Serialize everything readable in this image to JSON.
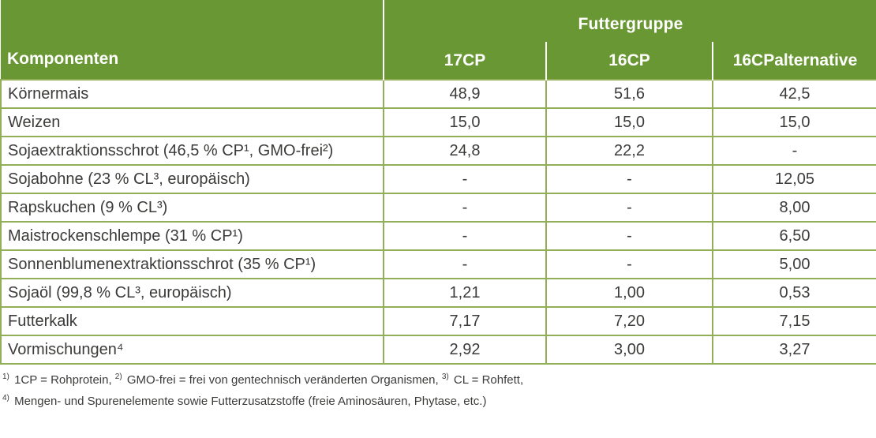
{
  "colors": {
    "header-green": "#699733",
    "border-green": "#93ae58",
    "header-text": "#ffffff",
    "body-text": "#3b3b3a"
  },
  "table": {
    "group_header": "Futtergruppe",
    "left_header": "Komponenten",
    "columns": [
      "17CP",
      "16CP",
      "16CPalternative"
    ],
    "rows": [
      {
        "label": "Körnermais",
        "values": [
          "48,9",
          "51,6",
          "42,5"
        ]
      },
      {
        "label": "Weizen",
        "values": [
          "15,0",
          "15,0",
          "15,0"
        ]
      },
      {
        "label": "Sojaextraktionsschrot (46,5 % CP¹, GMO-frei²)",
        "values": [
          "24,8",
          "22,2",
          "-"
        ]
      },
      {
        "label": "Sojabohne (23 % CL³, europäisch)",
        "values": [
          "-",
          "-",
          "12,05"
        ]
      },
      {
        "label": "Rapskuchen (9 % CL³)",
        "values": [
          "-",
          "-",
          "8,00"
        ]
      },
      {
        "label": "Maistrockenschlempe (31 % CP¹)",
        "values": [
          "-",
          "-",
          "6,50"
        ]
      },
      {
        "label": "Sonnenblumenextraktionsschrot (35 % CP¹)",
        "values": [
          "-",
          "-",
          "5,00"
        ]
      },
      {
        "label": "Sojaöl (99,8 % CL³, europäisch)",
        "values": [
          "1,21",
          "1,00",
          "0,53"
        ]
      },
      {
        "label": "Futterkalk",
        "values": [
          "7,17",
          "7,20",
          "7,15"
        ]
      },
      {
        "label": "Vormischungen⁴",
        "values": [
          "2,92",
          "3,00",
          "3,27"
        ]
      }
    ]
  },
  "footnotes": [
    {
      "segments": [
        {
          "sup": "1)"
        },
        {
          "text": " 1CP = Rohprotein, "
        },
        {
          "sup": "2)"
        },
        {
          "text": " GMO-frei = frei von gentechnisch veränderten Organismen, "
        },
        {
          "sup": "3)"
        },
        {
          "text": " CL = Rohfett,"
        }
      ]
    },
    {
      "segments": [
        {
          "sup": "4)"
        },
        {
          "text": " Mengen- und Spurenelemente sowie Futterzusatzstoffe (freie Aminosäuren, Phytase, etc.)"
        }
      ]
    }
  ]
}
